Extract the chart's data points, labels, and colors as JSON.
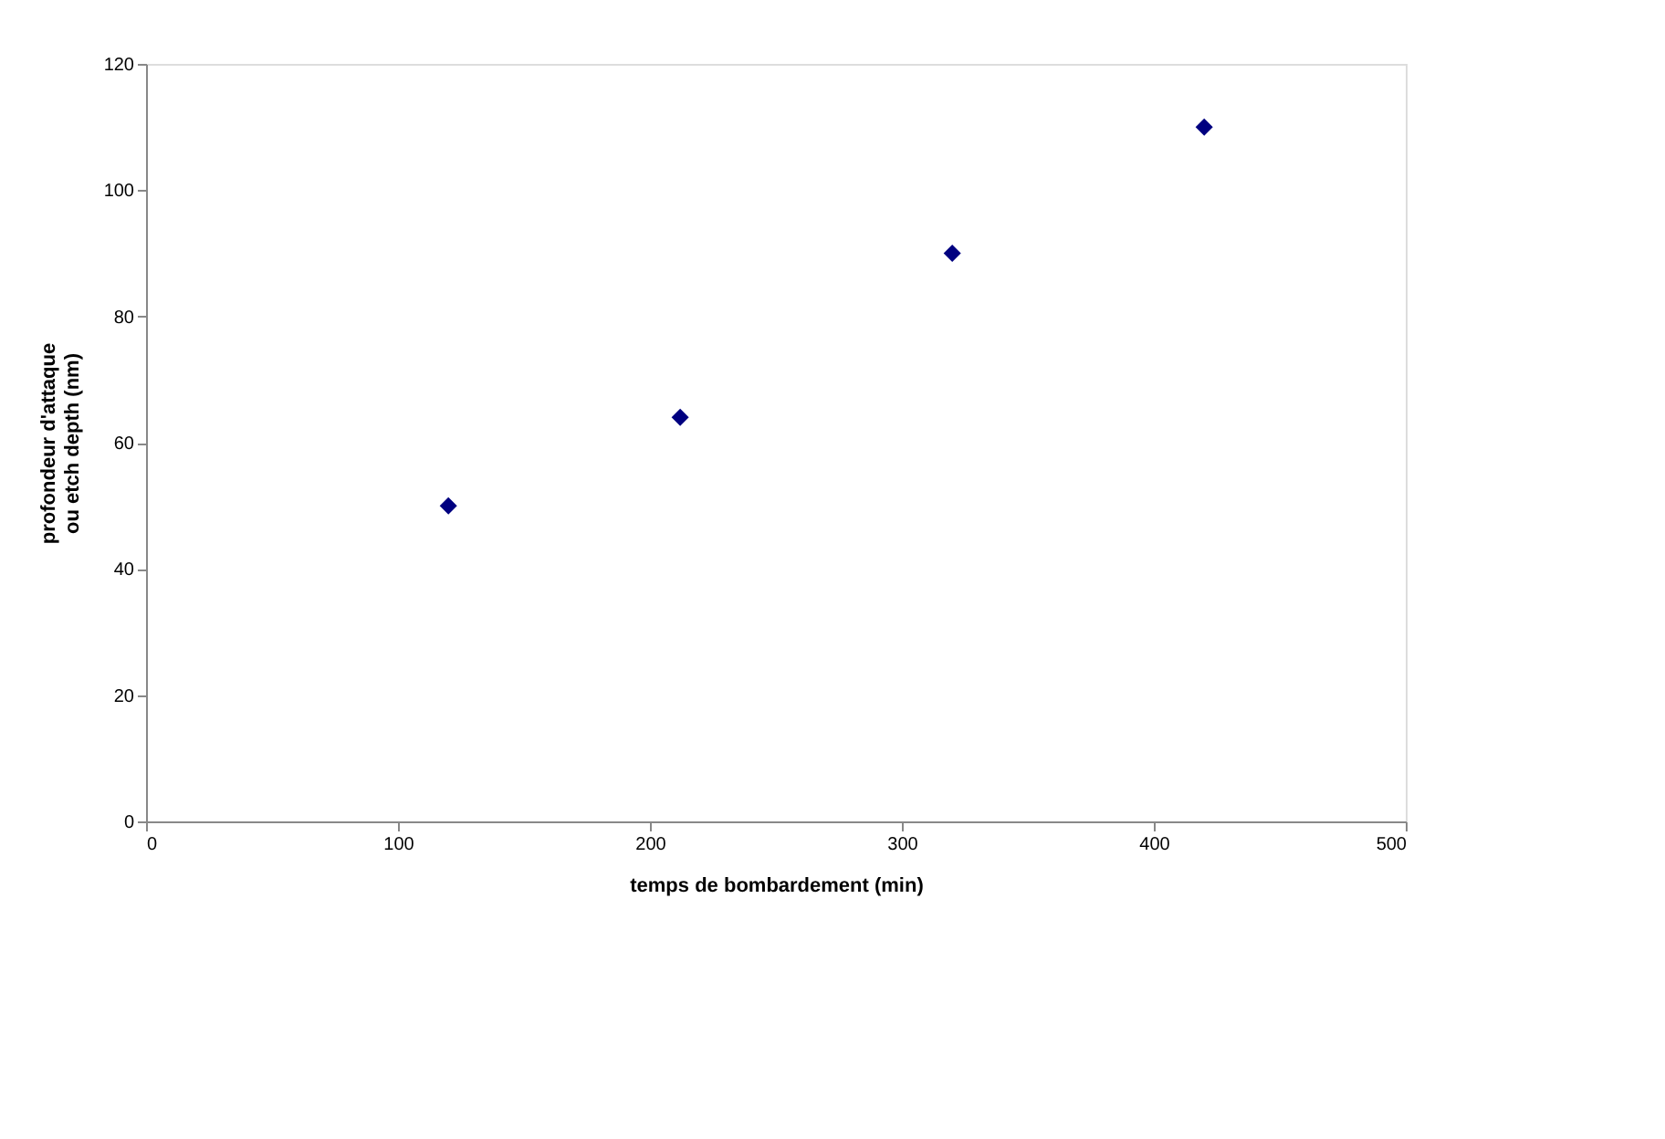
{
  "chart_data": {
    "type": "scatter",
    "xlabel": "temps de bombardement (min)",
    "ylabel": "profondeur d'attaque ou etch depth (nm)",
    "x": [
      120,
      212,
      320,
      420
    ],
    "series": [
      {
        "color": "#000080",
        "values": [
          50,
          64,
          90,
          110
        ]
      }
    ],
    "xlim": [
      0,
      500
    ],
    "xticks": [
      0,
      100,
      200,
      300,
      400,
      500
    ],
    "ylim": [
      0,
      120
    ],
    "yticks": [
      0,
      20,
      40,
      60,
      80,
      100,
      120
    ],
    "marker": "diamond",
    "grid": false,
    "legend": false
  }
}
